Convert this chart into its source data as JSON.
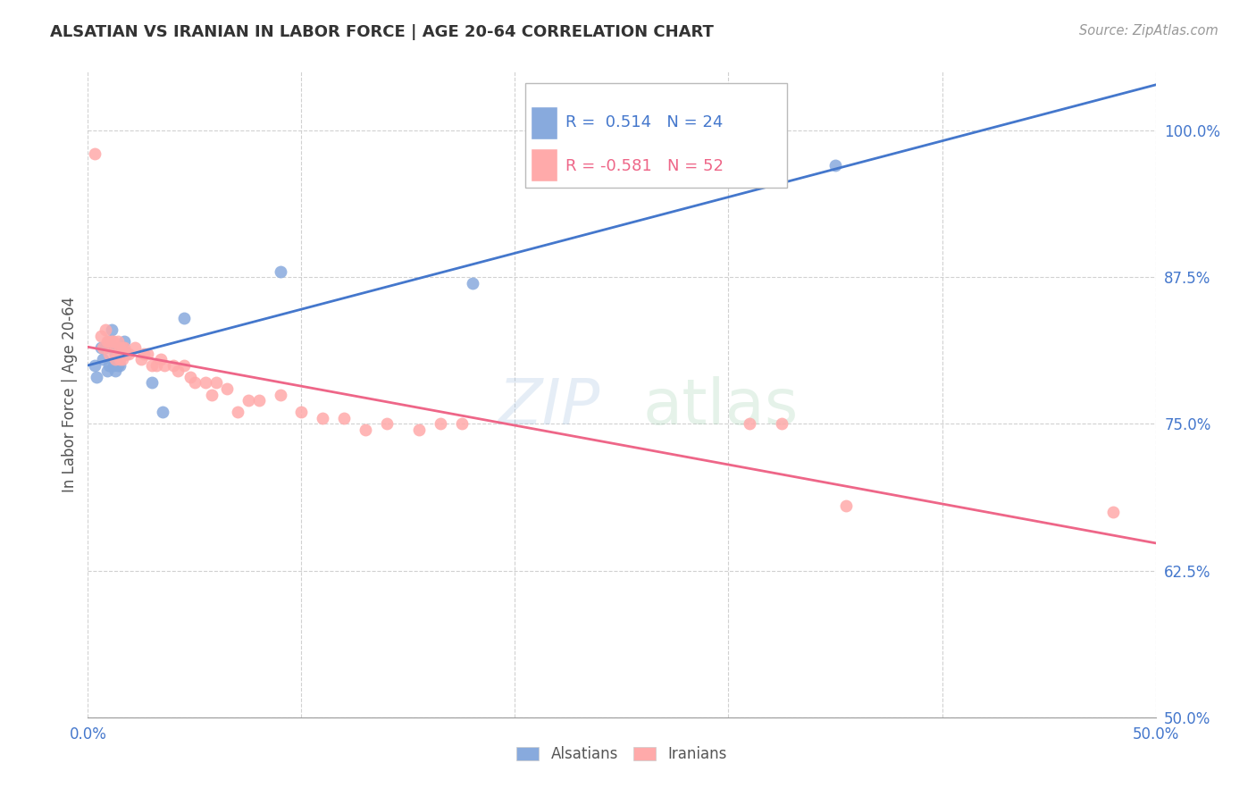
{
  "title": "ALSATIAN VS IRANIAN IN LABOR FORCE | AGE 20-64 CORRELATION CHART",
  "source": "Source: ZipAtlas.com",
  "ylabel_label": "In Labor Force | Age 20-64",
  "xlim": [
    0.0,
    0.5
  ],
  "ylim": [
    0.5,
    1.05
  ],
  "alsatian_color": "#88aadd",
  "iranian_color": "#ffaaaa",
  "alsatian_line_color": "#4477cc",
  "iranian_line_color": "#ee6688",
  "alsatian_R": 0.514,
  "alsatian_N": 24,
  "iranian_R": -0.581,
  "iranian_N": 52,
  "background_color": "#ffffff",
  "alsatian_x": [
    0.003,
    0.004,
    0.006,
    0.007,
    0.008,
    0.009,
    0.01,
    0.01,
    0.011,
    0.012,
    0.012,
    0.013,
    0.013,
    0.014,
    0.015,
    0.016,
    0.017,
    0.018,
    0.03,
    0.035,
    0.045,
    0.09,
    0.18,
    0.35
  ],
  "alsatian_y": [
    0.8,
    0.79,
    0.815,
    0.805,
    0.815,
    0.795,
    0.82,
    0.8,
    0.83,
    0.8,
    0.815,
    0.81,
    0.795,
    0.8,
    0.8,
    0.815,
    0.82,
    0.81,
    0.785,
    0.76,
    0.84,
    0.88,
    0.87,
    0.97
  ],
  "iranian_x": [
    0.003,
    0.006,
    0.007,
    0.008,
    0.009,
    0.01,
    0.01,
    0.011,
    0.012,
    0.013,
    0.013,
    0.014,
    0.015,
    0.015,
    0.016,
    0.016,
    0.017,
    0.018,
    0.019,
    0.022,
    0.025,
    0.026,
    0.028,
    0.03,
    0.032,
    0.034,
    0.036,
    0.04,
    0.042,
    0.045,
    0.048,
    0.05,
    0.055,
    0.058,
    0.06,
    0.065,
    0.07,
    0.075,
    0.08,
    0.09,
    0.1,
    0.11,
    0.12,
    0.13,
    0.14,
    0.155,
    0.165,
    0.175,
    0.31,
    0.325,
    0.355,
    0.48
  ],
  "iranian_y": [
    0.98,
    0.825,
    0.815,
    0.83,
    0.82,
    0.82,
    0.81,
    0.82,
    0.82,
    0.815,
    0.805,
    0.82,
    0.815,
    0.805,
    0.815,
    0.805,
    0.815,
    0.81,
    0.81,
    0.815,
    0.805,
    0.81,
    0.81,
    0.8,
    0.8,
    0.805,
    0.8,
    0.8,
    0.795,
    0.8,
    0.79,
    0.785,
    0.785,
    0.775,
    0.785,
    0.78,
    0.76,
    0.77,
    0.77,
    0.775,
    0.76,
    0.755,
    0.755,
    0.745,
    0.75,
    0.745,
    0.75,
    0.75,
    0.75,
    0.75,
    0.68,
    0.675
  ]
}
